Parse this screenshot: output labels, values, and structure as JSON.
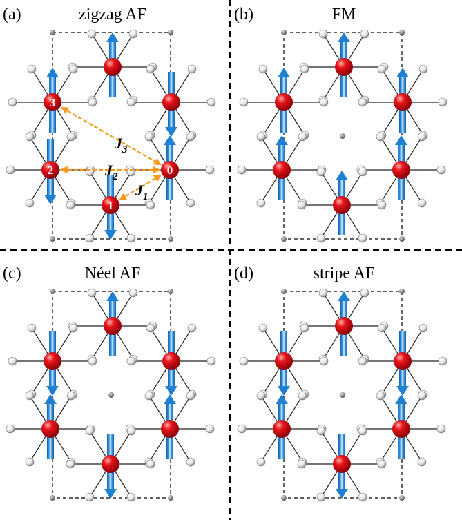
{
  "panels": [
    {
      "label": "(a)",
      "title": "zigzag AF",
      "atom_labels": [
        "0",
        "1",
        "2",
        "3"
      ],
      "couplings": [
        {
          "symbol": "J",
          "index": "1"
        },
        {
          "symbol": "J",
          "index": "2"
        },
        {
          "symbol": "J",
          "index": "3"
        }
      ]
    },
    {
      "label": "(b)",
      "title": "FM"
    },
    {
      "label": "(c)",
      "title": "Néel AF"
    },
    {
      "label": "(d)",
      "title": "stripe AF"
    }
  ]
}
